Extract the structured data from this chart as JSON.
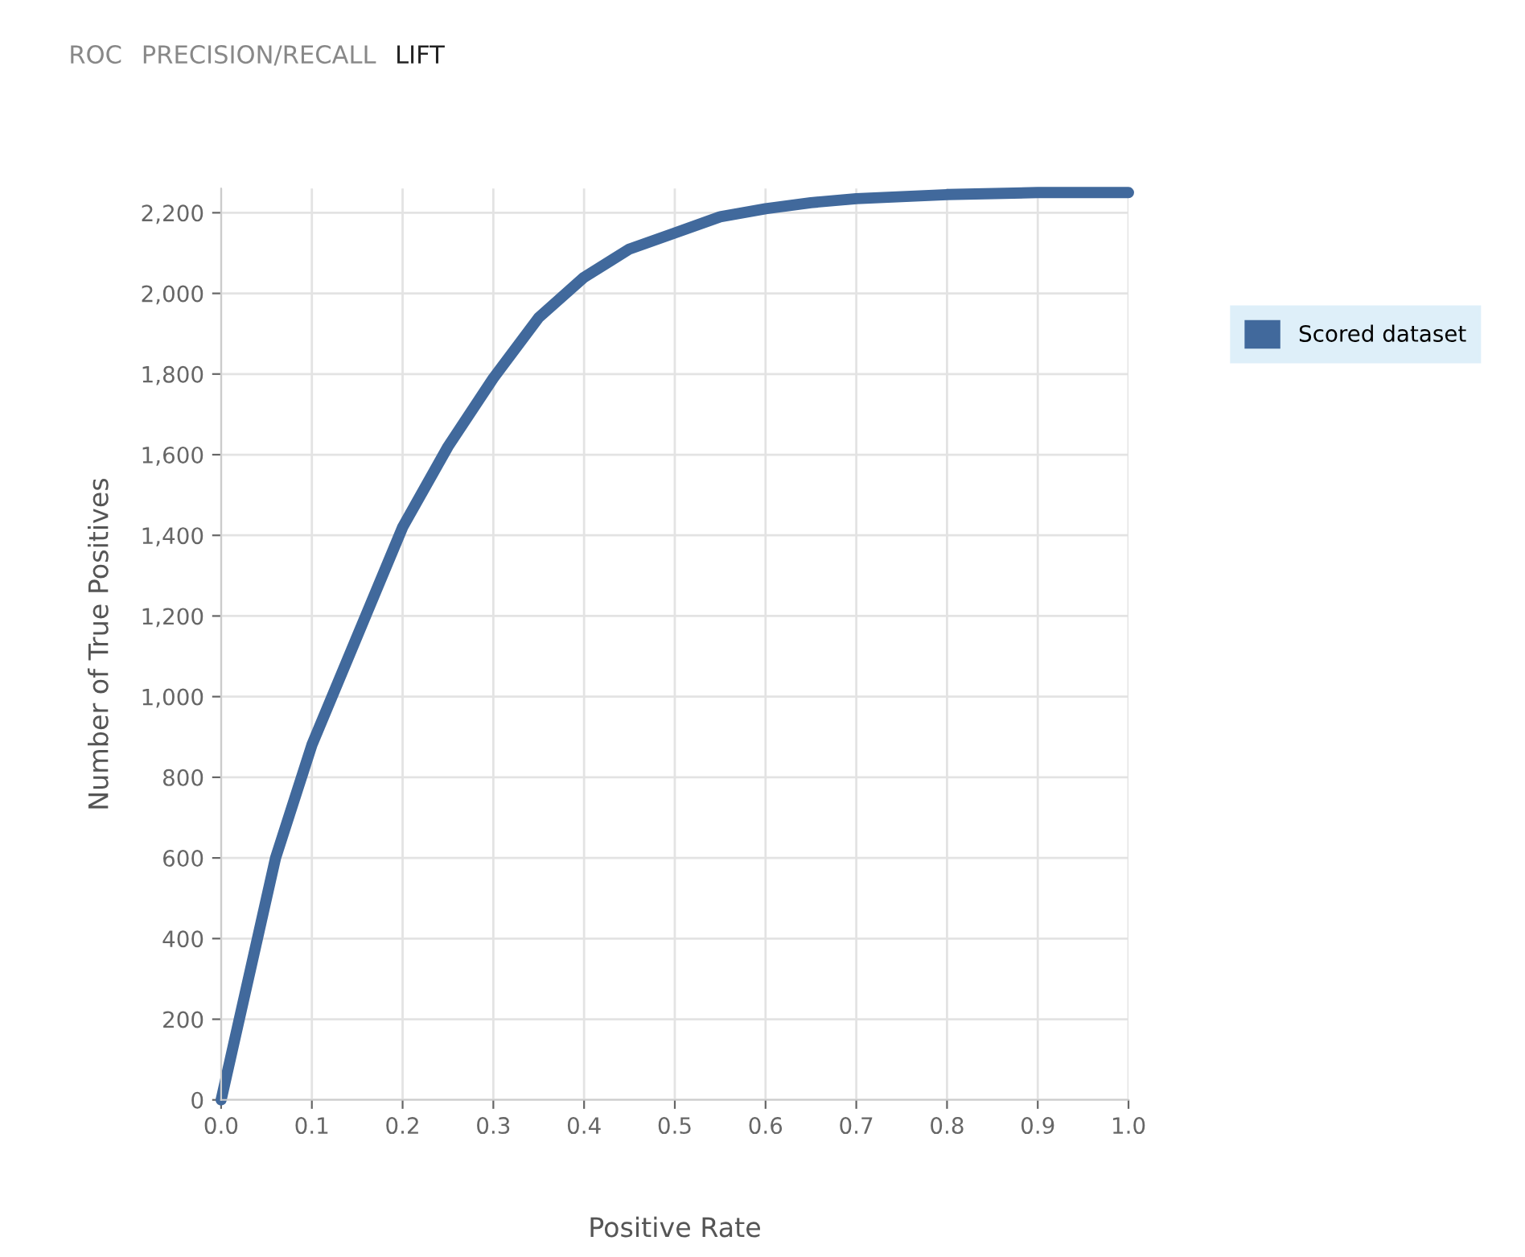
{
  "chart_data": {
    "type": "line",
    "xlabel": "Positive Rate",
    "ylabel": "Number of True Positives",
    "annotations": [
      "ROC",
      "PRECISION/RECALL",
      "LIFT"
    ],
    "x": [
      0,
      0.03,
      0.06,
      0.1,
      0.15,
      0.2,
      0.25,
      0.3,
      0.35,
      0.4,
      0.45,
      0.5,
      0.55,
      0.6,
      0.65,
      0.7,
      0.8,
      0.9,
      1.0
    ],
    "series": [
      {
        "name": "Scored dataset",
        "color": "#41699c",
        "values": [
          0,
          300,
          600,
          880,
          1150,
          1420,
          1620,
          1790,
          1940,
          2040,
          2110,
          2150,
          2190,
          2210,
          2225,
          2235,
          2245,
          2250,
          2250
        ]
      }
    ],
    "xlim": [
      0,
      1
    ],
    "ylim": [
      0,
      2260
    ],
    "xticks": [
      {
        "value": 0,
        "label": "0.0"
      },
      0.1,
      0.2,
      0.3,
      0.4,
      0.5,
      0.6,
      0.7,
      0.8,
      0.9,
      {
        "value": 1,
        "label": "1.0"
      }
    ],
    "yticks": [
      0,
      200,
      400,
      600,
      800,
      {
        "value": 1000,
        "label": "1,000"
      },
      {
        "value": 1200,
        "label": "1,200"
      },
      {
        "value": 1400,
        "label": "1,400"
      },
      {
        "value": 1600,
        "label": "1,600"
      },
      {
        "value": 1800,
        "label": "1,800"
      },
      {
        "value": 2000,
        "label": "2,000"
      },
      {
        "value": 2200,
        "label": "2,200"
      }
    ],
    "grid": true,
    "legend": "right",
    "marker": "none",
    "line_style": "solid"
  }
}
